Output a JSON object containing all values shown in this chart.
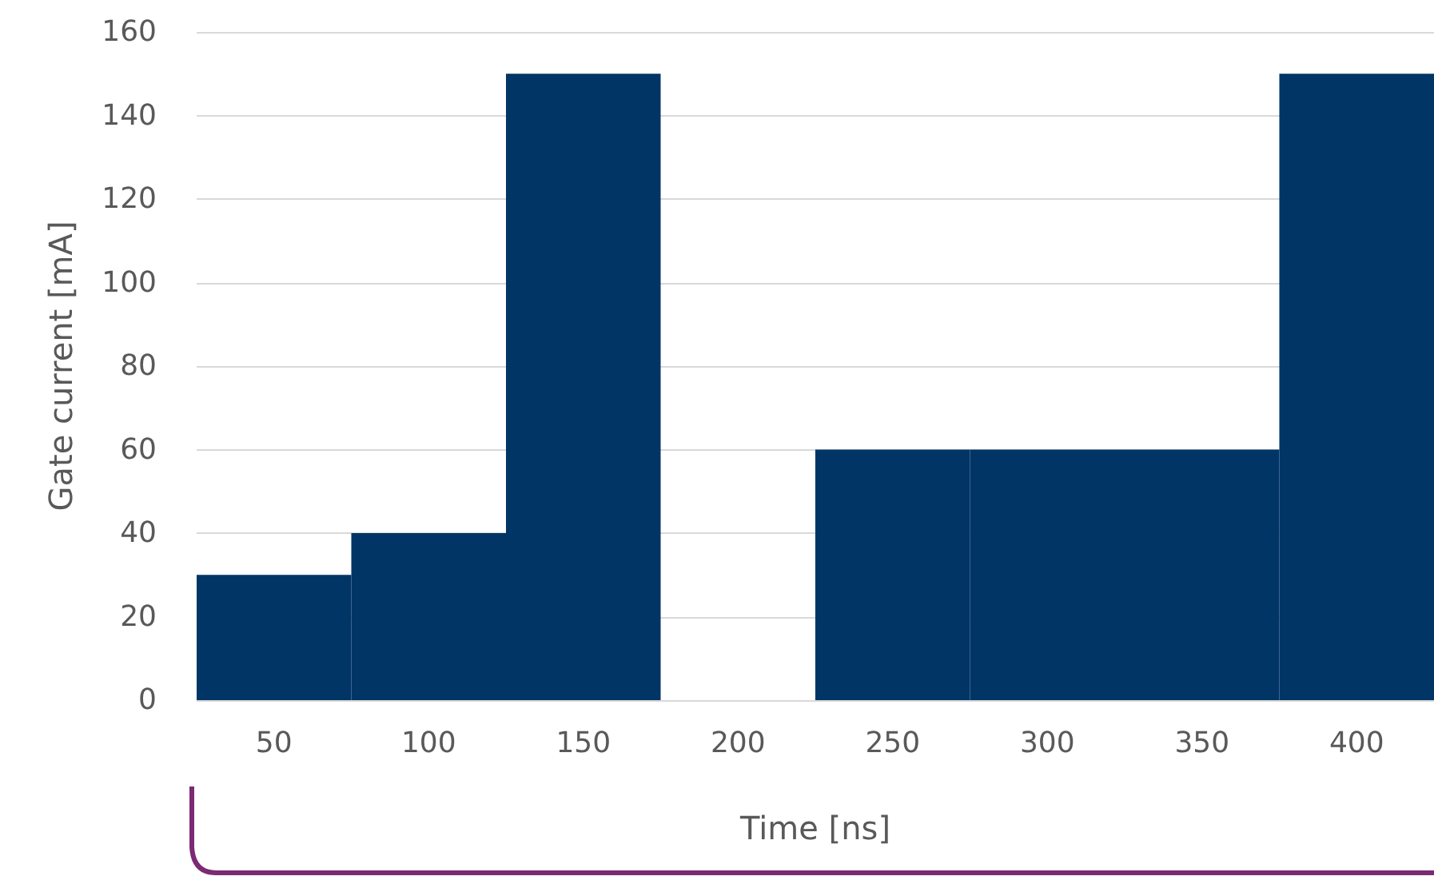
{
  "chart_data": {
    "type": "bar",
    "categories": [
      "50",
      "100",
      "150",
      "200",
      "250",
      "300",
      "350",
      "400"
    ],
    "values": [
      30,
      40,
      150,
      0,
      60,
      60,
      60,
      150
    ],
    "color": "#003566",
    "xlabel": "Time [ns]",
    "ylabel": "Gate current [mA]",
    "ylim": [
      0,
      160
    ],
    "yticks": [
      0,
      20,
      40,
      60,
      80,
      100,
      120,
      140,
      160
    ],
    "grid": "y"
  }
}
